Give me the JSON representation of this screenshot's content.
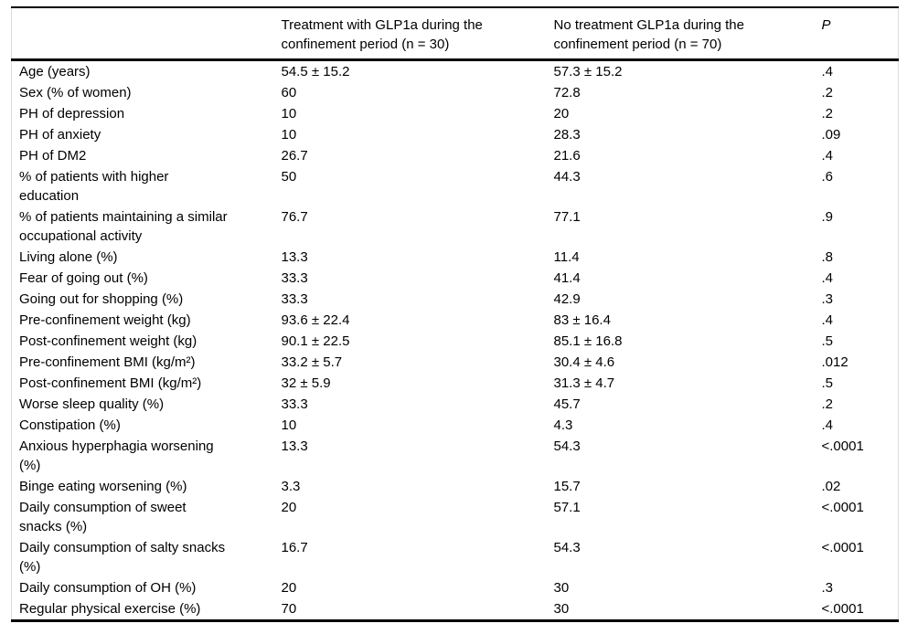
{
  "colors": {
    "background": "#ffffff",
    "text": "#000000",
    "rule": "#000000",
    "faint_edge_border": "#dcdcdc"
  },
  "table": {
    "columns": [
      {
        "label": ""
      },
      {
        "label": "Treatment with GLP1a during the confinement period (n = 30)"
      },
      {
        "label": "No treatment GLP1a during the confinement period (n = 70)"
      },
      {
        "label": "P"
      }
    ],
    "rows": [
      {
        "label": "Age (years)",
        "treatment": "54.5 ± 15.2",
        "no_treatment": "57.3 ± 15.2",
        "p": ".4"
      },
      {
        "label": "Sex (% of women)",
        "treatment": "60",
        "no_treatment": "72.8",
        "p": ".2"
      },
      {
        "label": "PH of depression",
        "treatment": "10",
        "no_treatment": "20",
        "p": ".2"
      },
      {
        "label": "PH of anxiety",
        "treatment": "10",
        "no_treatment": "28.3",
        "p": ".09"
      },
      {
        "label": "PH of DM2",
        "treatment": "26.7",
        "no_treatment": "21.6",
        "p": ".4"
      },
      {
        "label": "% of patients with higher education",
        "treatment": "50",
        "no_treatment": "44.3",
        "p": ".6"
      },
      {
        "label": "% of patients maintaining a similar occupational activity",
        "treatment": "76.7",
        "no_treatment": "77.1",
        "p": ".9"
      },
      {
        "label": "Living alone (%)",
        "treatment": "13.3",
        "no_treatment": "11.4",
        "p": ".8"
      },
      {
        "label": "Fear of going out (%)",
        "treatment": "33.3",
        "no_treatment": "41.4",
        "p": ".4"
      },
      {
        "label": "Going out for shopping (%)",
        "treatment": "33.3",
        "no_treatment": "42.9",
        "p": ".3"
      },
      {
        "label": "Pre-confinement weight (kg)",
        "treatment": "93.6 ± 22.4",
        "no_treatment": "83 ± 16.4",
        "p": ".4"
      },
      {
        "label": "Post-confinement weight (kg)",
        "treatment": "90.1 ± 22.5",
        "no_treatment": "85.1 ± 16.8",
        "p": ".5"
      },
      {
        "label": "Pre-confinement BMI (kg/m²)",
        "treatment": "33.2 ± 5.7",
        "no_treatment": "30.4 ± 4.6",
        "p": ".012"
      },
      {
        "label": "Post-confinement BMI (kg/m²)",
        "treatment": "32 ± 5.9",
        "no_treatment": "31.3 ± 4.7",
        "p": ".5"
      },
      {
        "label": "Worse sleep quality (%)",
        "treatment": "33.3",
        "no_treatment": "45.7",
        "p": ".2"
      },
      {
        "label": "Constipation (%)",
        "treatment": "10",
        "no_treatment": "4.3",
        "p": ".4"
      },
      {
        "label": "Anxious hyperphagia worsening (%)",
        "treatment": "13.3",
        "no_treatment": "54.3",
        "p": "<.0001"
      },
      {
        "label": "Binge eating worsening (%)",
        "treatment": "3.3",
        "no_treatment": "15.7",
        "p": ".02"
      },
      {
        "label": "Daily consumption of sweet snacks (%)",
        "treatment": "20",
        "no_treatment": "57.1",
        "p": "<.0001"
      },
      {
        "label": "Daily consumption of salty snacks (%)",
        "treatment": "16.7",
        "no_treatment": "54.3",
        "p": "<.0001"
      },
      {
        "label": "Daily consumption of OH (%)",
        "treatment": "20",
        "no_treatment": "30",
        "p": ".3"
      },
      {
        "label": "Regular physical exercise (%)",
        "treatment": "70",
        "no_treatment": "30",
        "p": "<.0001"
      }
    ]
  }
}
